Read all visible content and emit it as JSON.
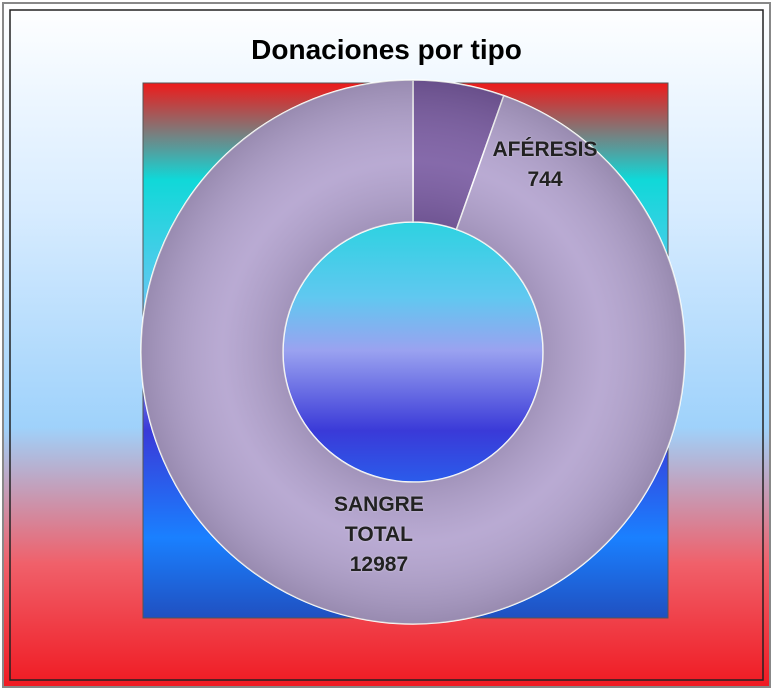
{
  "chart_data": {
    "type": "donut",
    "title": "Donaciones por tipo",
    "categories": [
      "AFÉRESIS",
      "SANGRE TOTAL"
    ],
    "values": [
      744,
      12987
    ],
    "colors": [
      "#7b5da3",
      "#b3a3cf"
    ]
  }
}
